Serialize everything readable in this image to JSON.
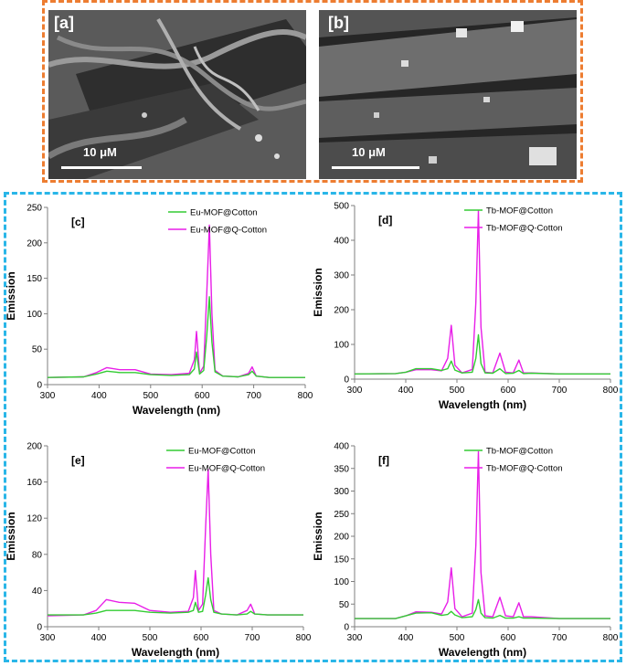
{
  "sem_panels": [
    {
      "tag": "[a]",
      "scale_label": "10 μM"
    },
    {
      "tag": "[b]",
      "scale_label": "10 μM"
    }
  ],
  "colors": {
    "sem_border": "#ed7d31",
    "chart_border": "#29b6e8",
    "series_1": "#33cc33",
    "series_2": "#e81ee8"
  },
  "chart_data": [
    {
      "type": "line",
      "panel": "[c]",
      "xlabel": "Wavelength (nm)",
      "ylabel": "Emission",
      "xlim": [
        300,
        800
      ],
      "ylim": [
        0,
        250
      ],
      "xticks": [
        300,
        400,
        500,
        600,
        700,
        800
      ],
      "yticks": [
        0,
        50,
        100,
        150,
        200,
        250
      ],
      "legend_position": "top-right",
      "series": [
        {
          "name": "Eu-MOF@Cotton",
          "color": "#33cc33",
          "x": [
            300,
            370,
            395,
            415,
            440,
            470,
            500,
            540,
            575,
            585,
            589,
            595,
            603,
            609,
            614,
            619,
            625,
            640,
            670,
            690,
            697,
            705,
            730,
            800
          ],
          "y": [
            10,
            11,
            15,
            19,
            17,
            17,
            14,
            13,
            14,
            22,
            46,
            15,
            20,
            70,
            124,
            60,
            18,
            12,
            11,
            14,
            19,
            12,
            10,
            10
          ]
        },
        {
          "name": "Eu-MOF@Q-Cotton",
          "color": "#e81ee8",
          "x": [
            300,
            370,
            395,
            415,
            440,
            470,
            500,
            540,
            575,
            585,
            589,
            595,
            603,
            609,
            614,
            619,
            625,
            640,
            670,
            690,
            697,
            705,
            730,
            800
          ],
          "y": [
            10,
            11,
            17,
            24,
            21,
            21,
            15,
            14,
            16,
            35,
            75,
            16,
            26,
            130,
            225,
            100,
            20,
            12,
            11,
            16,
            25,
            12,
            10,
            10
          ]
        }
      ]
    },
    {
      "type": "line",
      "panel": "[d]",
      "xlabel": "Wavelength (nm)",
      "ylabel": "Emission",
      "xlim": [
        300,
        800
      ],
      "ylim": [
        0,
        500
      ],
      "xticks": [
        300,
        400,
        500,
        600,
        700,
        800
      ],
      "yticks": [
        0,
        100,
        200,
        300,
        400,
        500
      ],
      "legend_position": "top-right",
      "series": [
        {
          "name": "Tb-MOF@Cotton",
          "color": "#33cc33",
          "x": [
            300,
            380,
            400,
            420,
            450,
            470,
            482,
            489,
            496,
            510,
            530,
            537,
            542,
            547,
            555,
            570,
            584,
            595,
            610,
            621,
            630,
            645,
            700,
            800
          ],
          "y": [
            15,
            16,
            20,
            30,
            30,
            25,
            30,
            52,
            26,
            18,
            20,
            60,
            128,
            45,
            18,
            17,
            30,
            16,
            17,
            25,
            16,
            17,
            15,
            15
          ]
        },
        {
          "name": "Tb-MOF@Q-Cotton",
          "color": "#e81ee8",
          "x": [
            300,
            380,
            400,
            420,
            450,
            470,
            482,
            489,
            496,
            510,
            530,
            537,
            542,
            547,
            555,
            570,
            584,
            595,
            610,
            621,
            630,
            645,
            700,
            800
          ],
          "y": [
            15,
            16,
            20,
            27,
            27,
            24,
            60,
            155,
            40,
            18,
            28,
            220,
            485,
            150,
            20,
            18,
            75,
            20,
            18,
            55,
            18,
            18,
            15,
            15
          ]
        }
      ]
    },
    {
      "type": "line",
      "panel": "[e]",
      "xlabel": "Wavelength (nm)",
      "ylabel": "Emission",
      "xlim": [
        300,
        800
      ],
      "ylim": [
        0,
        200
      ],
      "xticks": [
        300,
        400,
        500,
        600,
        700,
        800
      ],
      "yticks": [
        0,
        40,
        80,
        120,
        160,
        200
      ],
      "legend_position": "top-right",
      "series": [
        {
          "name": "Eu-MOF@Cotton",
          "color": "#33cc33",
          "x": [
            300,
            370,
            395,
            415,
            440,
            470,
            500,
            540,
            575,
            585,
            589,
            595,
            603,
            609,
            614,
            619,
            625,
            640,
            670,
            690,
            697,
            705,
            730,
            800
          ],
          "y": [
            13,
            13,
            15,
            18,
            18,
            18,
            16,
            15,
            16,
            18,
            27,
            16,
            17,
            35,
            54,
            30,
            16,
            14,
            13,
            14,
            17,
            14,
            13,
            13
          ]
        },
        {
          "name": "Eu-MOF@Q-Cotton",
          "color": "#e81ee8",
          "x": [
            300,
            370,
            395,
            415,
            440,
            470,
            500,
            540,
            575,
            585,
            589,
            595,
            603,
            609,
            614,
            619,
            625,
            640,
            670,
            690,
            697,
            705,
            730,
            800
          ],
          "y": [
            12,
            13,
            18,
            30,
            27,
            26,
            18,
            16,
            17,
            32,
            62,
            18,
            25,
            110,
            174,
            80,
            18,
            14,
            13,
            18,
            25,
            14,
            13,
            13
          ]
        }
      ]
    },
    {
      "type": "line",
      "panel": "[f]",
      "xlabel": "Wavelength (nm)",
      "ylabel": "Emission",
      "xlim": [
        300,
        800
      ],
      "ylim": [
        0,
        400
      ],
      "xticks": [
        300,
        400,
        500,
        600,
        700,
        800
      ],
      "yticks": [
        0,
        50,
        100,
        150,
        200,
        250,
        300,
        350,
        400
      ],
      "legend_position": "top-right",
      "series": [
        {
          "name": "Tb-MOF@Cotton",
          "color": "#33cc33",
          "x": [
            300,
            380,
            400,
            420,
            450,
            470,
            482,
            489,
            496,
            510,
            530,
            537,
            542,
            547,
            555,
            570,
            584,
            595,
            610,
            621,
            630,
            645,
            700,
            800
          ],
          "y": [
            18,
            18,
            24,
            30,
            31,
            25,
            27,
            34,
            26,
            20,
            22,
            38,
            60,
            30,
            20,
            19,
            25,
            19,
            19,
            22,
            19,
            19,
            18,
            18
          ]
        },
        {
          "name": "Tb-MOF@Q-Cotton",
          "color": "#e81ee8",
          "x": [
            300,
            380,
            400,
            420,
            450,
            470,
            482,
            489,
            496,
            510,
            530,
            537,
            542,
            547,
            555,
            570,
            584,
            595,
            610,
            621,
            630,
            645,
            700,
            800
          ],
          "y": [
            18,
            18,
            24,
            33,
            32,
            28,
            55,
            130,
            40,
            22,
            30,
            180,
            387,
            120,
            24,
            22,
            65,
            24,
            22,
            53,
            22,
            22,
            18,
            18
          ]
        }
      ]
    }
  ]
}
